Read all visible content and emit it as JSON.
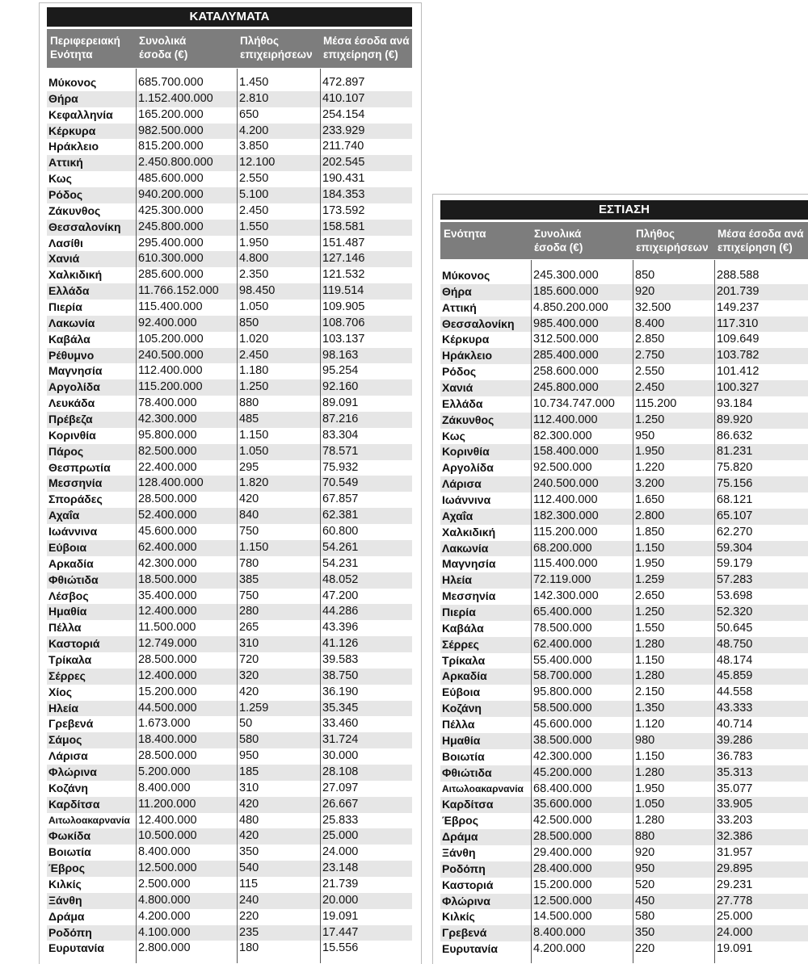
{
  "accommodation": {
    "title": "ΚΑΤΑΛΥΜΑΤΑ",
    "headers": [
      "Περιφερειακή Ενότητα",
      "Συνολικά έσοδα (€)",
      "Πλήθος επιχειρήσεων",
      "Μέσα έσοδα ανά επιχείρηση  (€)"
    ],
    "header_lines": [
      [
        "Περιφερειακή",
        "Ενότητα"
      ],
      [
        "Συνολικά",
        "έσοδα (€)"
      ],
      [
        "Πλήθος",
        "επιχειρήσεων"
      ],
      [
        "Μέσα έσοδα ανά",
        "επιχείρηση  (€)"
      ]
    ],
    "rows": [
      [
        "Μύκονος",
        "685.700.000",
        "1.450",
        "472.897"
      ],
      [
        "Θήρα",
        "1.152.400.000",
        "2.810",
        "410.107"
      ],
      [
        "Κεφαλληνία",
        "165.200.000",
        "650",
        "254.154"
      ],
      [
        "Κέρκυρα",
        "982.500.000",
        "4.200",
        "233.929"
      ],
      [
        "Ηράκλειο",
        "815.200.000",
        "3.850",
        "211.740"
      ],
      [
        "Αττική",
        "2.450.800.000",
        "12.100",
        "202.545"
      ],
      [
        "Κως",
        "485.600.000",
        "2.550",
        "190.431"
      ],
      [
        "Ρόδος",
        "940.200.000",
        "5.100",
        "184.353"
      ],
      [
        "Ζάκυνθος",
        "425.300.000",
        "2.450",
        "173.592"
      ],
      [
        "Θεσσαλονίκη",
        "245.800.000",
        "1.550",
        "158.581"
      ],
      [
        "Λασίθι",
        "295.400.000",
        "1.950",
        "151.487"
      ],
      [
        "Χανιά",
        "610.300.000",
        "4.800",
        "127.146"
      ],
      [
        "Χαλκιδική",
        "285.600.000",
        "2.350",
        "121.532"
      ],
      [
        "Ελλάδα",
        "11.766.152.000",
        "98.450",
        "119.514"
      ],
      [
        "Πιερία",
        "115.400.000",
        "1.050",
        "109.905"
      ],
      [
        "Λακωνία",
        "92.400.000",
        "850",
        "108.706"
      ],
      [
        "Καβάλα",
        "105.200.000",
        "1.020",
        "103.137"
      ],
      [
        "Ρέθυμνο",
        "240.500.000",
        "2.450",
        "98.163"
      ],
      [
        "Μαγνησία",
        "112.400.000",
        "1.180",
        "95.254"
      ],
      [
        "Αργολίδα",
        "115.200.000",
        "1.250",
        "92.160"
      ],
      [
        "Λευκάδα",
        "78.400.000",
        "880",
        "89.091"
      ],
      [
        "Πρέβεζα",
        "42.300.000",
        "485",
        "87.216"
      ],
      [
        "Κορινθία",
        "95.800.000",
        "1.150",
        "83.304"
      ],
      [
        "Πάρος",
        "82.500.000",
        "1.050",
        "78.571"
      ],
      [
        "Θεσπρωτία",
        "22.400.000",
        "295",
        "75.932"
      ],
      [
        "Μεσσηνία",
        "128.400.000",
        "1.820",
        "70.549"
      ],
      [
        "Σποράδες",
        "28.500.000",
        "420",
        "67.857"
      ],
      [
        "Αχαΐα",
        "52.400.000",
        "840",
        "62.381"
      ],
      [
        "Ιωάννινα",
        "45.600.000",
        "750",
        "60.800"
      ],
      [
        "Εύβοια",
        "62.400.000",
        "1.150",
        "54.261"
      ],
      [
        "Αρκαδία",
        "42.300.000",
        "780",
        "54.231"
      ],
      [
        "Φθιώτιδα",
        "18.500.000",
        "385",
        "48.052"
      ],
      [
        "Λέσβος",
        "35.400.000",
        "750",
        "47.200"
      ],
      [
        "Ημαθία",
        "12.400.000",
        "280",
        "44.286"
      ],
      [
        "Πέλλα",
        "11.500.000",
        "265",
        "43.396"
      ],
      [
        "Καστοριά",
        "12.749.000",
        "310",
        "41.126"
      ],
      [
        "Τρίκαλα",
        "28.500.000",
        "720",
        "39.583"
      ],
      [
        "Σέρρες",
        "12.400.000",
        "320",
        "38.750"
      ],
      [
        "Χίος",
        "15.200.000",
        "420",
        "36.190"
      ],
      [
        "Ηλεία",
        "44.500.000",
        "1.259",
        "35.345"
      ],
      [
        "Γρεβενά",
        "1.673.000",
        "50",
        "33.460"
      ],
      [
        "Σάμος",
        "18.400.000",
        "580",
        "31.724"
      ],
      [
        "Λάρισα",
        "28.500.000",
        "950",
        "30.000"
      ],
      [
        "Φλώρινα",
        "5.200.000",
        "185",
        "28.108"
      ],
      [
        "Κοζάνη",
        "8.400.000",
        "310",
        "27.097"
      ],
      [
        "Καρδίτσα",
        "11.200.000",
        "420",
        "26.667"
      ],
      [
        "Αιτωλοακαρνανία",
        "12.400.000",
        "480",
        "25.833"
      ],
      [
        "Φωκίδα",
        "10.500.000",
        "420",
        "25.000"
      ],
      [
        "Βοιωτία",
        "8.400.000",
        "350",
        "24.000"
      ],
      [
        "Έβρος",
        "12.500.000",
        "540",
        "23.148"
      ],
      [
        "Κιλκίς",
        "2.500.000",
        "115",
        "21.739"
      ],
      [
        "Ξάνθη",
        "4.800.000",
        "240",
        "20.000"
      ],
      [
        "Δράμα",
        "4.200.000",
        "220",
        "19.091"
      ],
      [
        "Ροδόπη",
        "4.100.000",
        "235",
        "17.447"
      ],
      [
        "Ευρυτανία",
        "2.800.000",
        "180",
        "15.556"
      ]
    ]
  },
  "dining": {
    "title": "ΕΣΤΙΑΣΗ",
    "header_lines": [
      [
        "Ενότητα",
        ""
      ],
      [
        "Συνολικά",
        "έσοδα (€)"
      ],
      [
        "Πλήθος",
        "επιχειρήσεων"
      ],
      [
        "Μέσα έσοδα ανά",
        "επιχείρηση  (€)"
      ]
    ],
    "rows": [
      [
        "Μύκονος",
        "245.300.000",
        "850",
        "288.588"
      ],
      [
        "Θήρα",
        "185.600.000",
        "920",
        "201.739"
      ],
      [
        "Αττική",
        "4.850.200.000",
        "32.500",
        "149.237"
      ],
      [
        "Θεσσαλονίκη",
        "985.400.000",
        "8.400",
        "117.310"
      ],
      [
        "Κέρκυρα",
        "312.500.000",
        "2.850",
        "109.649"
      ],
      [
        "Ηράκλειο",
        "285.400.000",
        "2.750",
        "103.782"
      ],
      [
        "Ρόδος",
        "258.600.000",
        "2.550",
        "101.412"
      ],
      [
        "Χανιά",
        "245.800.000",
        "2.450",
        "100.327"
      ],
      [
        "Ελλάδα",
        "10.734.747.000",
        "115.200",
        "93.184"
      ],
      [
        "Ζάκυνθος",
        "112.400.000",
        "1.250",
        "89.920"
      ],
      [
        "Κως",
        "82.300.000",
        "950",
        "86.632"
      ],
      [
        "Κορινθία",
        "158.400.000",
        "1.950",
        "81.231"
      ],
      [
        "Αργολίδα",
        "92.500.000",
        "1.220",
        "75.820"
      ],
      [
        "Λάρισα",
        "240.500.000",
        "3.200",
        "75.156"
      ],
      [
        "Ιωάννινα",
        "112.400.000",
        "1.650",
        "68.121"
      ],
      [
        "Αχαΐα",
        "182.300.000",
        "2.800",
        "65.107"
      ],
      [
        "Χαλκιδική",
        "115.200.000",
        "1.850",
        "62.270"
      ],
      [
        "Λακωνία",
        "68.200.000",
        "1.150",
        "59.304"
      ],
      [
        "Μαγνησία",
        "115.400.000",
        "1.950",
        "59.179"
      ],
      [
        "Ηλεία",
        "72.119.000",
        "1.259",
        "57.283"
      ],
      [
        "Μεσσηνία",
        "142.300.000",
        "2.650",
        "53.698"
      ],
      [
        "Πιερία",
        "65.400.000",
        "1.250",
        "52.320"
      ],
      [
        "Καβάλα",
        "78.500.000",
        "1.550",
        "50.645"
      ],
      [
        "Σέρρες",
        "62.400.000",
        "1.280",
        "48.750"
      ],
      [
        "Τρίκαλα",
        "55.400.000",
        "1.150",
        "48.174"
      ],
      [
        "Αρκαδία",
        "58.700.000",
        "1.280",
        "45.859"
      ],
      [
        "Εύβοια",
        "95.800.000",
        "2.150",
        "44.558"
      ],
      [
        "Κοζάνη",
        "58.500.000",
        "1.350",
        "43.333"
      ],
      [
        "Πέλλα",
        "45.600.000",
        "1.120",
        "40.714"
      ],
      [
        "Ημαθία",
        "38.500.000",
        "980",
        "39.286"
      ],
      [
        "Βοιωτία",
        "42.300.000",
        "1.150",
        "36.783"
      ],
      [
        "Φθιώτιδα",
        "45.200.000",
        "1.280",
        "35.313"
      ],
      [
        "Αιτωλοακαρνανία",
        "68.400.000",
        "1.950",
        "35.077"
      ],
      [
        "Καρδίτσα",
        "35.600.000",
        "1.050",
        "33.905"
      ],
      [
        "Έβρος",
        "42.500.000",
        "1.280",
        "33.203"
      ],
      [
        "Δράμα",
        "28.500.000",
        "880",
        "32.386"
      ],
      [
        "Ξάνθη",
        "29.400.000",
        "920",
        "31.957"
      ],
      [
        "Ροδόπη",
        "28.400.000",
        "950",
        "29.895"
      ],
      [
        "Καστοριά",
        "15.200.000",
        "520",
        "29.231"
      ],
      [
        "Φλώρινα",
        "12.500.000",
        "450",
        "27.778"
      ],
      [
        "Κιλκίς",
        "14.500.000",
        "580",
        "25.000"
      ],
      [
        "Γρεβενά",
        "8.400.000",
        "350",
        "24.000"
      ],
      [
        "Ευρυτανία",
        "4.200.000",
        "220",
        "19.091"
      ]
    ]
  }
}
